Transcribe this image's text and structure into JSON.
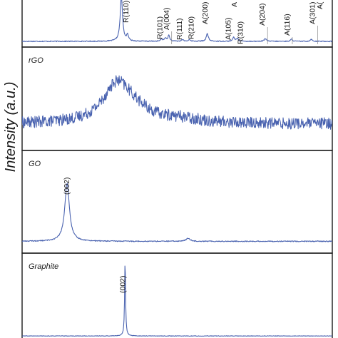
{
  "chart_data": {
    "type": "line",
    "ylabel": "Intensity (a.u.)",
    "xlabel": "",
    "x_range": [
      0,
      100
    ],
    "panels": [
      {
        "label": "",
        "series": {
          "name": "",
          "baseline": 0.08,
          "noise": 0.01,
          "peaks": [
            {
              "x": 32,
              "h": 1.0,
              "w": 0.45
            },
            {
              "x": 34,
              "h": 0.13,
              "w": 0.35
            },
            {
              "x": 45,
              "h": 0.05,
              "w": 0.35
            },
            {
              "x": 46.2,
              "h": 0.07,
              "w": 0.35
            },
            {
              "x": 47.3,
              "h": 0.13,
              "w": 0.35
            },
            {
              "x": 51.7,
              "h": 0.04,
              "w": 0.35
            },
            {
              "x": 54,
              "h": 0.04,
              "w": 0.35
            },
            {
              "x": 59.7,
              "h": 0.17,
              "w": 0.4
            },
            {
              "x": 68.2,
              "h": 0.09,
              "w": 0.35
            },
            {
              "x": 69.4,
              "h": 0.07,
              "w": 0.35
            },
            {
              "x": 78.4,
              "h": 0.06,
              "w": 0.4
            },
            {
              "x": 86.9,
              "h": 0.05,
              "w": 0.35
            },
            {
              "x": 93.2,
              "h": 0.05,
              "w": 0.35
            }
          ]
        },
        "annotations": [
          {
            "text": "R(110)",
            "x": 34.2
          },
          {
            "text": "R(101)",
            "x": 45.2
          },
          {
            "text": "A(004)",
            "x": 47.3
          },
          {
            "text": "R(111)",
            "x": 51.5
          },
          {
            "text": "R(210)",
            "x": 55.3
          },
          {
            "text": "A(200)",
            "x": 59.8
          },
          {
            "text": "A(105)",
            "x": 67.2
          },
          {
            "text": "A",
            "x": 69.2
          },
          {
            "text": "R(310)",
            "x": 71.2
          },
          {
            "text": "A(204)",
            "x": 78.2
          },
          {
            "text": "A(116)",
            "x": 86.2
          },
          {
            "text": "A(301)",
            "x": 94.4
          },
          {
            "text": "A(",
            "x": 96.8
          }
        ]
      },
      {
        "label": "rGO",
        "series": {
          "name": "",
          "baseline": 0.25,
          "noise": 0.06,
          "peaks": [
            {
              "x": 30.5,
              "h": 0.38,
              "w": 5.5
            },
            {
              "x": 36,
              "h": 0.1,
              "w": 6
            },
            {
              "x": 51,
              "h": 0.04,
              "w": 8
            }
          ]
        },
        "annotations": []
      },
      {
        "label": "GO",
        "series": {
          "name": "",
          "baseline": 0.1,
          "noise": 0.005,
          "peaks": [
            {
              "x": 14.5,
              "h": 0.6,
              "w": 0.9
            },
            {
              "x": 53.5,
              "h": 0.03,
              "w": 0.8
            }
          ]
        },
        "annotations": [
          {
            "text": "(002)",
            "x": 15.2
          }
        ]
      },
      {
        "label": "Graphite",
        "series": {
          "name": "",
          "baseline": 0.05,
          "noise": 0.003,
          "peaks": [
            {
              "x": 33.2,
              "h": 0.92,
              "w": 0.18
            }
          ]
        },
        "annotations": [
          {
            "text": "(002)",
            "x": 33.2
          }
        ]
      }
    ]
  }
}
